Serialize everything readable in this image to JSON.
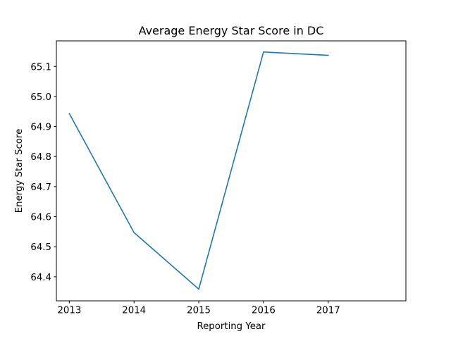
{
  "chart_data": {
    "type": "line",
    "title": "Average Energy Star Score in DC",
    "xlabel": "Reporting Year",
    "ylabel": "Energy Star Score",
    "x": [
      2013,
      2014,
      2015,
      2016,
      2017
    ],
    "series": [
      {
        "values": [
          64.943,
          64.547,
          64.359,
          65.148,
          65.137
        ],
        "color": "#1f77b4"
      }
    ],
    "xlim": [
      2012.8,
      2018.2
    ],
    "ylim": [
      64.32,
      65.185
    ],
    "xticks": [
      "2013",
      "2014",
      "2015",
      "2016",
      "2017"
    ],
    "yticks": [
      "64.4",
      "64.5",
      "64.6",
      "64.7",
      "64.8",
      "64.9",
      "65.0",
      "65.1"
    ],
    "grid": false
  }
}
